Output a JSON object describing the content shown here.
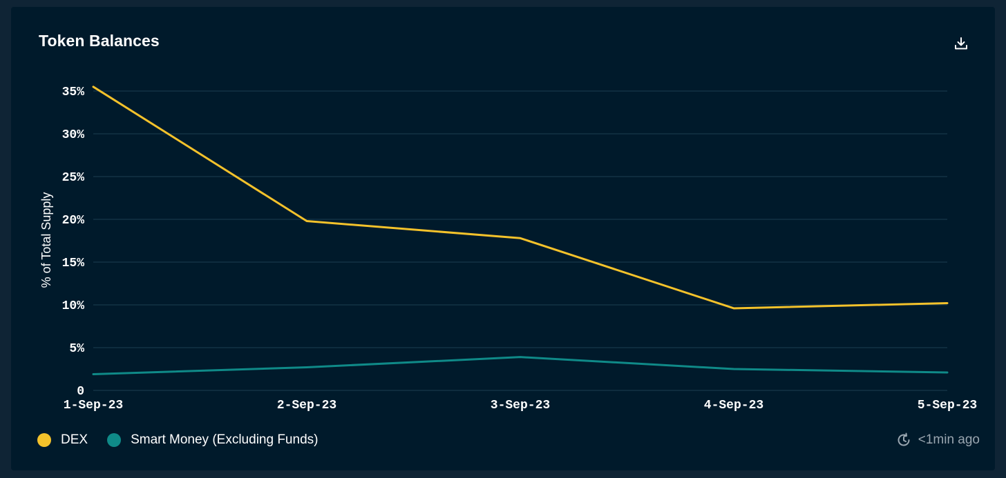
{
  "card": {
    "title": "Token Balances",
    "download_icon": "download-icon",
    "updated_icon": "refresh-clock-icon",
    "updated_text": "<1min ago"
  },
  "colors": {
    "background": "#001a2b",
    "grid": "#1d3d52",
    "dex": "#f4c22b",
    "smart_money": "#0f8a88",
    "text": "#ffffff",
    "muted": "#9aa6b0"
  },
  "chart_data": {
    "type": "line",
    "title": "Token Balances",
    "xlabel": "",
    "ylabel": "% of Total Supply",
    "x": [
      "1-Sep-23",
      "2-Sep-23",
      "3-Sep-23",
      "4-Sep-23",
      "5-Sep-23"
    ],
    "ylim": [
      0,
      35
    ],
    "yticks": [
      "0",
      "5%",
      "10%",
      "15%",
      "20%",
      "25%",
      "30%",
      "35%"
    ],
    "ytick_values": [
      0,
      5,
      10,
      15,
      20,
      25,
      30,
      35
    ],
    "grid": true,
    "legend_position": "bottom-left",
    "series": [
      {
        "name": "DEX",
        "color": "#f4c22b",
        "values": [
          35.5,
          19.8,
          17.8,
          9.6,
          10.2
        ]
      },
      {
        "name": "Smart Money (Excluding Funds)",
        "color": "#0f8a88",
        "values": [
          1.9,
          2.7,
          3.9,
          2.5,
          2.1
        ]
      }
    ]
  }
}
